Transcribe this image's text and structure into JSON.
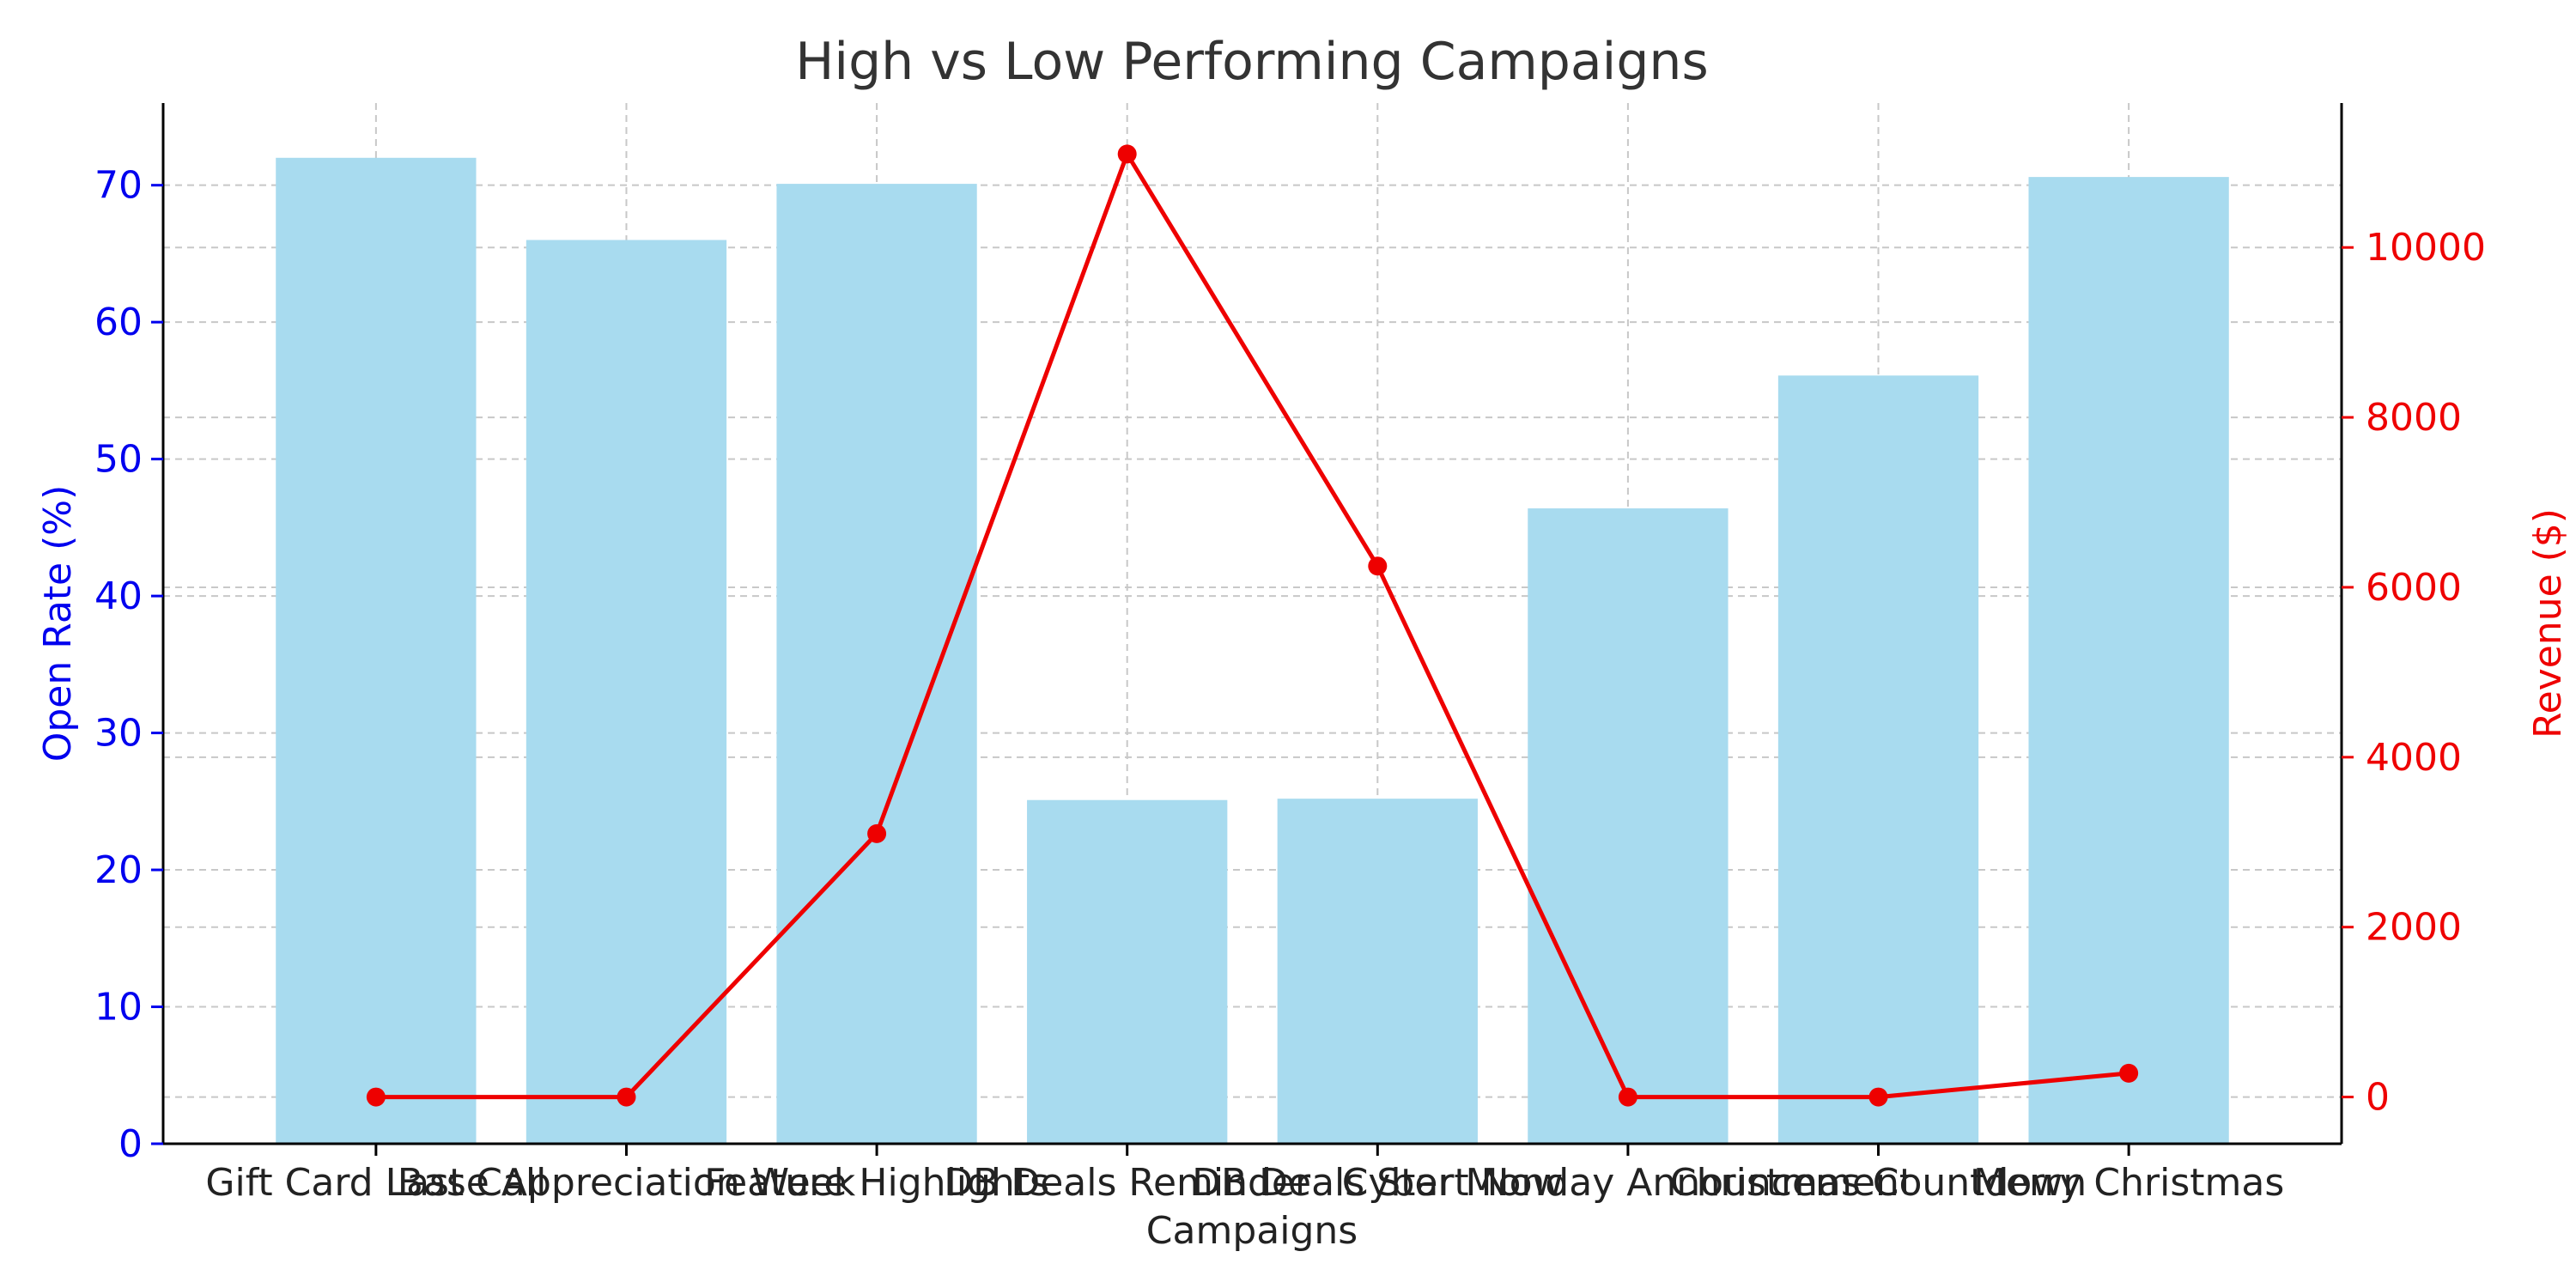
{
  "chart_data": {
    "type": "bar+line",
    "title": "High vs Low Performing Campaigns",
    "xlabel": "Campaigns",
    "ylabel_left": "Open Rate (%)",
    "ylabel_right": "Revenue ($)",
    "categories": [
      "Gift Card Last Call",
      "Base Appreciation Week",
      "Feature Highlights",
      "DB Deals Reminder",
      "DB Deals Start Now",
      "Cyber Monday Announcement",
      "Christmas Countdown",
      "Merry Christmas"
    ],
    "series": [
      {
        "type": "bar",
        "axis": "left",
        "values": [
          72.0,
          66.0,
          70.1,
          25.1,
          25.2,
          46.4,
          56.1,
          70.6
        ]
      },
      {
        "type": "line",
        "axis": "right",
        "values": [
          0,
          0,
          3100,
          11100,
          6250,
          0,
          0,
          280
        ]
      }
    ],
    "ylim_left": [
      0,
      76
    ],
    "ylim_right": [
      -550,
      11700
    ],
    "yticks_left": [
      0,
      10,
      20,
      30,
      40,
      50,
      60,
      70
    ],
    "yticks_right": [
      0,
      2000,
      4000,
      6000,
      8000,
      10000
    ],
    "grid": true,
    "colors": {
      "bar": "#a8dbef",
      "line": "#ee0000",
      "left_axis": "#0000ee",
      "right_axis": "#ee0000",
      "grid": "#c8c8c8"
    }
  }
}
